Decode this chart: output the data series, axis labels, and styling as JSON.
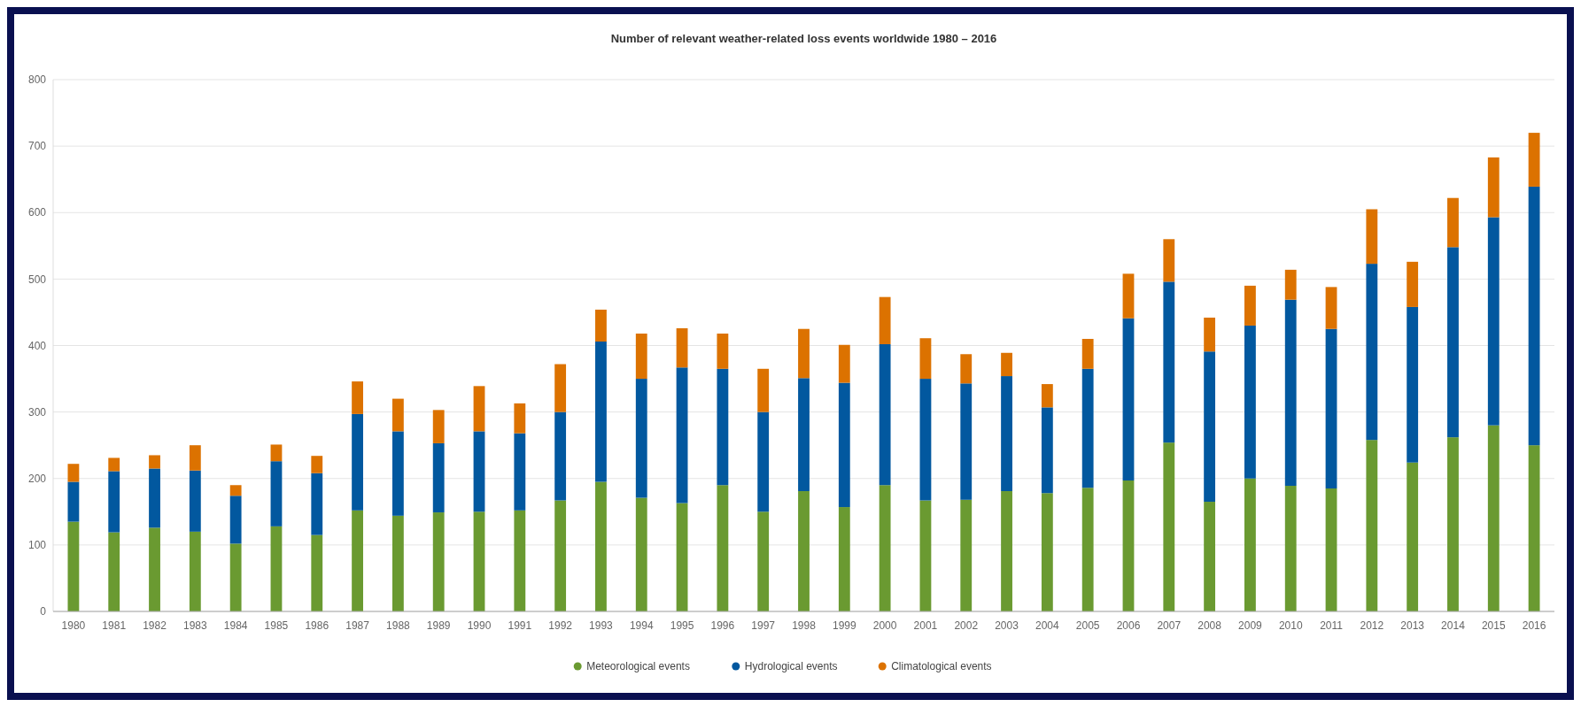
{
  "chart_data": {
    "type": "bar",
    "title": "Number of relevant weather-related loss events worldwide 1980 – 2016",
    "categories": [
      "1980",
      "1981",
      "1982",
      "1983",
      "1984",
      "1985",
      "1986",
      "1987",
      "1988",
      "1989",
      "1990",
      "1991",
      "1992",
      "1993",
      "1994",
      "1995",
      "1996",
      "1997",
      "1998",
      "1999",
      "2000",
      "2001",
      "2002",
      "2003",
      "2004",
      "2005",
      "2006",
      "2007",
      "2008",
      "2009",
      "2010",
      "2011",
      "2012",
      "2013",
      "2014",
      "2015",
      "2016"
    ],
    "stacked": true,
    "series": [
      {
        "name": "Meteorological events",
        "color": "#6a9a31",
        "values": [
          135,
          119,
          126,
          120,
          102,
          128,
          115,
          152,
          144,
          149,
          150,
          152,
          167,
          195,
          171,
          163,
          190,
          150,
          181,
          157,
          190,
          167,
          168,
          181,
          178,
          186,
          197,
          254,
          165,
          200,
          189,
          185,
          258,
          224,
          262,
          280,
          250
        ]
      },
      {
        "name": "Hydrological events",
        "color": "#02589f",
        "values": [
          60,
          92,
          89,
          92,
          72,
          98,
          93,
          145,
          127,
          104,
          121,
          116,
          133,
          211,
          179,
          204,
          175,
          150,
          170,
          187,
          212,
          183,
          175,
          173,
          129,
          179,
          244,
          242,
          226,
          230,
          280,
          240,
          265,
          234,
          286,
          313,
          389
        ]
      },
      {
        "name": "Climatological events",
        "color": "#dc7200",
        "values": [
          27,
          20,
          20,
          38,
          16,
          25,
          26,
          49,
          49,
          50,
          68,
          45,
          72,
          48,
          68,
          59,
          53,
          65,
          74,
          57,
          71,
          61,
          44,
          35,
          35,
          45,
          67,
          64,
          51,
          60,
          45,
          63,
          82,
          68,
          74,
          90,
          81
        ]
      }
    ],
    "ylim": [
      0,
      800
    ],
    "yticks": [
      0,
      100,
      200,
      300,
      400,
      500,
      600,
      700,
      800
    ],
    "grid": "y",
    "legend": "bottom"
  }
}
